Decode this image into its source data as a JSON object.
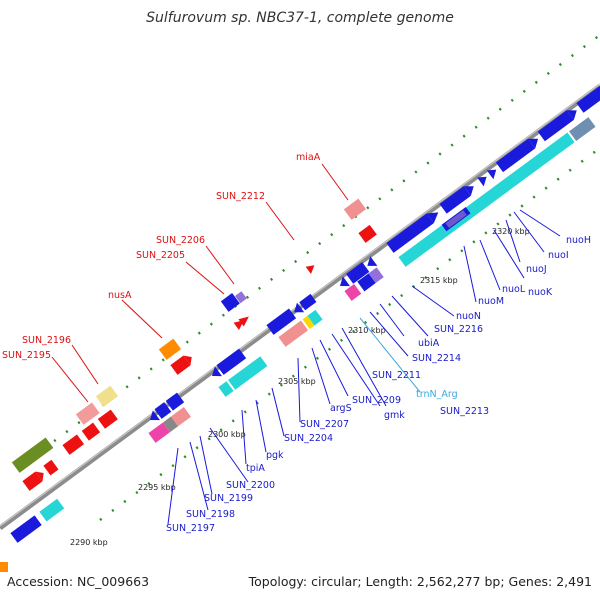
{
  "title": "Sulfurovum sp. NBC37-1, complete genome",
  "footer": {
    "accession": "Accession: NC_009663",
    "info": "Topology: circular; Length: 2,562,277 bp; Genes: 2,491"
  },
  "colors": {
    "backbone": "#8c8c8c",
    "cds": "#1a1adc",
    "cds_label": "#1a1acc",
    "other_label": "#dd1111",
    "trna_label": "#3aa8e0",
    "tick": "#2e8b2e",
    "cyan": "#26d6d6",
    "red": "#ee1111",
    "pink": "#f09090"
  },
  "ticks": [
    "2290 kbp",
    "2295 kbp",
    "2300 kbp",
    "2305 kbp",
    "2310 kbp",
    "2315 kbp",
    "2320 kbp"
  ],
  "labels_lower": [
    "SUN_2197",
    "SUN_2198",
    "SUN_2199",
    "SUN_2200",
    "tpiA",
    "pgk",
    "SUN_2204",
    "SUN_2207",
    "argS",
    "SUN_2209",
    "gmk",
    "SUN_2211",
    "SUN_2213",
    "trnN_Arg",
    "SUN_2214",
    "ubiA",
    "SUN_2216",
    "nuoN",
    "nuoM",
    "nuoL",
    "nuoK",
    "nuoJ",
    "nuoI",
    "nuoH"
  ],
  "labels_upper": [
    "SUN_2195",
    "SUN_2196",
    "nusA",
    "SUN_2205",
    "SUN_2206",
    "SUN_2212",
    "miaA"
  ]
}
